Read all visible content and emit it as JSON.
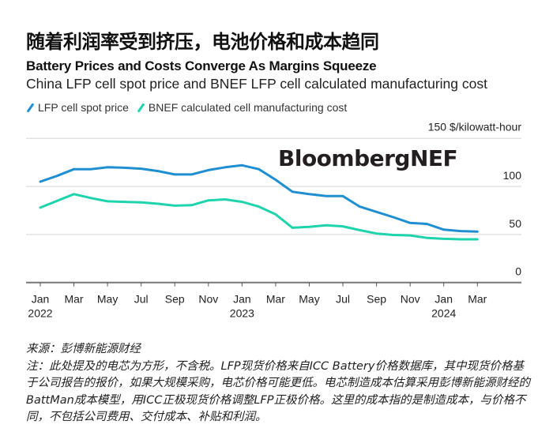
{
  "header": {
    "cn_title": "随着利润率受到挤压，电池价格和成本趋同",
    "en_title": "Battery Prices and Costs Converge As Margins Squeeze",
    "en_subtitle": "China LFP cell spot price and BNEF LFP cell calculated manufacturing cost"
  },
  "legend": [
    {
      "label": "LFP cell spot price",
      "color": "#1f8fd1"
    },
    {
      "label": "BNEF calculated cell manufacturing cost",
      "color": "#1fd3ac"
    }
  ],
  "logo": "BloombergNEF",
  "footer": {
    "source": "来源：彭博新能源财经",
    "note": "注：此处提及的电芯为方形，不含税。LFP现货价格来自ICC Battery价格数据库，其中现货价格基于公司报告的报价，如果大规模采购，电芯价格可能更低。电芯制造成本估算采用彭博新能源财经的BattMan成本模型，用ICC正极现货价格调整LFP正极价格。这里的成本指的是制造成本，与价格不同，不包括公司费用、交付成本、补贴和利润。"
  },
  "chart_data": {
    "type": "line",
    "title": "Battery Prices and Costs Converge As Margins Squeeze",
    "subtitle": "China LFP cell spot price and BNEF LFP cell calculated manufacturing cost",
    "xlabel": "",
    "ylabel": "$/kilowatt-hour",
    "unit_label": "150 $/kilowatt-hour",
    "ylim": [
      0,
      150
    ],
    "yticks": [
      0,
      50,
      100,
      150
    ],
    "ytick_labels": [
      "0",
      "50",
      "100",
      "150 $/kilowatt-hour"
    ],
    "grid": true,
    "legend_position": "top-left",
    "x": [
      "2022-01",
      "2022-02",
      "2022-03",
      "2022-04",
      "2022-05",
      "2022-06",
      "2022-07",
      "2022-08",
      "2022-09",
      "2022-10",
      "2022-11",
      "2022-12",
      "2023-01",
      "2023-02",
      "2023-03",
      "2023-04",
      "2023-05",
      "2023-06",
      "2023-07",
      "2023-08",
      "2023-09",
      "2023-10",
      "2023-11",
      "2023-12",
      "2024-01",
      "2024-02",
      "2024-03"
    ],
    "xticks": [
      {
        "month_index": 0,
        "label": "Jan",
        "year": "2022"
      },
      {
        "month_index": 2,
        "label": "Mar",
        "year": ""
      },
      {
        "month_index": 4,
        "label": "May",
        "year": ""
      },
      {
        "month_index": 6,
        "label": "Jul",
        "year": ""
      },
      {
        "month_index": 8,
        "label": "Sep",
        "year": ""
      },
      {
        "month_index": 10,
        "label": "Nov",
        "year": ""
      },
      {
        "month_index": 12,
        "label": "Jan",
        "year": "2023"
      },
      {
        "month_index": 14,
        "label": "Mar",
        "year": ""
      },
      {
        "month_index": 16,
        "label": "May",
        "year": ""
      },
      {
        "month_index": 18,
        "label": "Jul",
        "year": ""
      },
      {
        "month_index": 20,
        "label": "Sep",
        "year": ""
      },
      {
        "month_index": 22,
        "label": "Nov",
        "year": ""
      },
      {
        "month_index": 24,
        "label": "Jan",
        "year": "2024"
      },
      {
        "month_index": 26,
        "label": "Mar",
        "year": ""
      }
    ],
    "series": [
      {
        "name": "LFP cell spot price",
        "color": "#1f8fd1",
        "values": [
          105,
          111,
          118,
          118,
          120,
          119.5,
          118.5,
          116,
          112.5,
          112.5,
          117,
          120,
          122,
          118,
          107,
          94.5,
          92,
          90,
          90,
          79,
          73.5,
          68,
          62,
          61,
          55,
          53.5,
          53
        ]
      },
      {
        "name": "BNEF calculated cell manufacturing cost",
        "color": "#1fd3ac",
        "values": [
          78,
          85,
          92,
          88,
          84.5,
          84,
          83.5,
          82,
          80,
          80.5,
          85.5,
          86.5,
          84,
          79,
          71,
          57,
          58,
          59.5,
          58.5,
          54.5,
          51,
          49.5,
          49,
          46.5,
          45.5,
          45,
          45
        ]
      }
    ]
  }
}
